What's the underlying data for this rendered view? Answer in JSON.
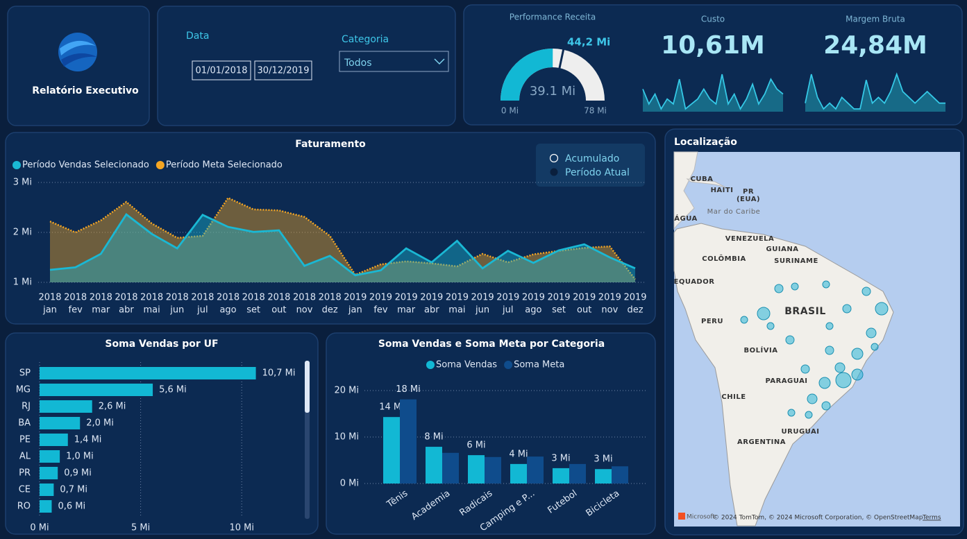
{
  "header": {
    "title": "Relatório Executivo"
  },
  "filters": {
    "date_label": "Data",
    "start": "01/01/2018",
    "end": "30/12/2019",
    "category_label": "Categoria",
    "category_value": "Todos"
  },
  "toggle": {
    "options": [
      "Acumulado",
      "Período Atual"
    ]
  },
  "chart_data": [
    {
      "type": "area",
      "title": "Faturamento",
      "categories": [
        [
          "2018",
          "jan"
        ],
        [
          "2018",
          "fev"
        ],
        [
          "2018",
          "mar"
        ],
        [
          "2018",
          "abr"
        ],
        [
          "2018",
          "mai"
        ],
        [
          "2018",
          "jun"
        ],
        [
          "2018",
          "jul"
        ],
        [
          "2018",
          "ago"
        ],
        [
          "2018",
          "set"
        ],
        [
          "2018",
          "out"
        ],
        [
          "2018",
          "nov"
        ],
        [
          "2018",
          "dez"
        ],
        [
          "2019",
          "jan"
        ],
        [
          "2019",
          "fev"
        ],
        [
          "2019",
          "mar"
        ],
        [
          "2019",
          "abr"
        ],
        [
          "2019",
          "mai"
        ],
        [
          "2019",
          "jun"
        ],
        [
          "2019",
          "jul"
        ],
        [
          "2019",
          "ago"
        ],
        [
          "2019",
          "set"
        ],
        [
          "2019",
          "out"
        ],
        [
          "2019",
          "nov"
        ],
        [
          "2019",
          "dez"
        ]
      ],
      "series": [
        {
          "name": "Período Vendas Selecionado",
          "color": "#1ab8d4",
          "line_style": "solid",
          "values": [
            1.25,
            1.3,
            1.57,
            2.36,
            1.97,
            1.68,
            2.35,
            2.11,
            2.01,
            2.04,
            1.33,
            1.53,
            1.14,
            1.24,
            1.68,
            1.4,
            1.83,
            1.28,
            1.63,
            1.39,
            1.64,
            1.76,
            1.5,
            1.28
          ]
        },
        {
          "name": "Período Meta Selecionado",
          "color": "#f5a623",
          "line_style": "dotted",
          "values": [
            2.22,
            2.0,
            2.24,
            2.61,
            2.18,
            1.89,
            1.93,
            2.69,
            2.46,
            2.44,
            2.31,
            1.93,
            1.15,
            1.36,
            1.42,
            1.38,
            1.32,
            1.57,
            1.4,
            1.56,
            1.63,
            1.69,
            1.72,
            1.06
          ]
        }
      ],
      "ylim": [
        1,
        3
      ],
      "yticks": [
        {
          "value": 1,
          "label": "1 Mi"
        },
        {
          "value": 2,
          "label": "2 Mi"
        },
        {
          "value": 3,
          "label": "3 Mi"
        }
      ],
      "grid": true
    },
    {
      "type": "bar",
      "orientation": "horizontal",
      "title": "Soma Vendas por UF",
      "color": "#12b8d4",
      "categories": [
        "SP",
        "MG",
        "RJ",
        "BA",
        "PE",
        "AL",
        "PR",
        "CE",
        "RO"
      ],
      "values": [
        10.7,
        5.6,
        2.6,
        2.0,
        1.4,
        1.0,
        0.9,
        0.7,
        0.6
      ],
      "value_labels": [
        "10,7 Mi",
        "5,6 Mi",
        "2,6 Mi",
        "2,0 Mi",
        "1,4 Mi",
        "1,0 Mi",
        "0,9 Mi",
        "0,7 Mi",
        "0,6 Mi"
      ],
      "xlim": [
        0,
        12.5
      ],
      "xticks": [
        {
          "value": 0,
          "label": "0 Mi"
        },
        {
          "value": 5,
          "label": "5 Mi"
        },
        {
          "value": 10,
          "label": "10 Mi"
        }
      ],
      "grid": true
    },
    {
      "type": "bar",
      "orientation": "vertical",
      "title": "Soma Vendas e Soma Meta por Categoria",
      "categories": [
        "Tênis",
        "Academia",
        "Radicais",
        "Camping e P...",
        "Futebol",
        "Bicicleta"
      ],
      "series": [
        {
          "name": "Soma Vendas",
          "color": "#12b8d4",
          "values": [
            14.3,
            7.9,
            6.1,
            4.2,
            3.3,
            3.1
          ],
          "value_labels": [
            "14 Mi",
            "8 Mi",
            "6 Mi",
            "4 Mi",
            "3 Mi",
            "3 Mi"
          ]
        },
        {
          "name": "Soma Meta",
          "color": "#0f4c8c",
          "values": [
            18.1,
            6.6,
            5.7,
            5.8,
            4.2,
            3.7
          ],
          "value_labels": [
            "18 Mi",
            null,
            null,
            null,
            null,
            null
          ]
        }
      ],
      "ylim": [
        0,
        22
      ],
      "yticks": [
        {
          "value": 0,
          "label": "0 Mi"
        },
        {
          "value": 10,
          "label": "10 Mi"
        },
        {
          "value": 20,
          "label": "20 Mi"
        }
      ],
      "grid": true
    },
    {
      "type": "gauge",
      "title": "Performance Receita",
      "color": "#12b8d4",
      "value": 39.1,
      "value_label": "39.1 Mi",
      "min": {
        "value": 0,
        "label": "0 Mi"
      },
      "max": {
        "value": 78,
        "label": "78 Mi"
      },
      "target": 44.2,
      "target_label": "44,2 Mi"
    },
    {
      "type": "line",
      "title": "Custo",
      "headline": "10,61M",
      "color": "#35c8e6",
      "values": [
        6,
        3,
        5,
        2,
        4,
        3,
        8,
        2,
        3,
        4,
        6,
        4,
        3,
        9,
        3,
        5,
        2,
        4,
        7,
        3,
        5,
        8,
        6,
        5
      ]
    },
    {
      "type": "line",
      "title": "Margem Bruta",
      "headline": "24,84M",
      "color": "#35c8e6",
      "values": [
        4,
        9,
        5,
        3,
        4,
        3,
        5,
        4,
        3,
        3,
        8,
        4,
        5,
        4,
        6,
        9,
        6,
        5,
        4,
        5,
        6,
        5,
        4,
        4
      ]
    }
  ],
  "map": {
    "title": "Localização",
    "labels": [
      "CUBA",
      "HAITI",
      "PR",
      "(EUA)",
      "Mar do Caribe",
      "ÁGUA",
      "VENEZUELA",
      "GUIANA",
      "COLÔMBIA",
      "SURINAME",
      "EQUADOR",
      "BRASIL",
      "PERU",
      "BOLÍVIA",
      "PARAGUAI",
      "CHILE",
      "URUGUAI",
      "ARGENTINA"
    ],
    "brand": "Microsoft",
    "attribution": "© 2024 TomTom, © 2024 Microsoft Corporation, © OpenStreetMap",
    "terms": "Terms"
  }
}
